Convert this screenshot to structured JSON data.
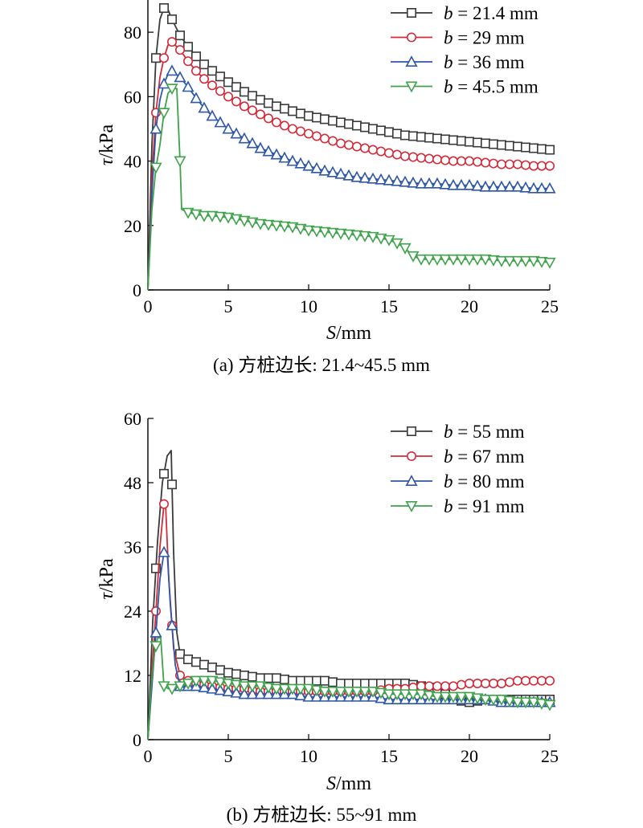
{
  "colors": {
    "black": "#3a3a3a",
    "red": "#d22b3a",
    "blue": "#2e57a6",
    "green": "#3ea24a"
  },
  "chart_data": [
    {
      "type": "line",
      "panel": "a",
      "caption": "(a) 方桩边长: 21.4~45.5 mm",
      "xlabel": {
        "var": "S",
        "unit": "/mm"
      },
      "ylabel": {
        "var": "τ",
        "unit": "/kPa"
      },
      "xlim": [
        0,
        25
      ],
      "ylim": [
        0,
        90
      ],
      "xticks": [
        "0",
        "5",
        "10",
        "15",
        "20",
        "25"
      ],
      "yticks": [
        "0",
        "20",
        "40",
        "60",
        "80"
      ],
      "ytick_values": [
        0,
        20,
        40,
        60,
        80
      ],
      "legend_placement": "top-right",
      "series": [
        {
          "name": "b = 21.4 mm",
          "legend": {
            "var": "b",
            "rest": " = 21.4 mm"
          },
          "color": "#3a3a3a",
          "marker": "square",
          "x": [
            0,
            0.25,
            0.5,
            0.75,
            1,
            1.25,
            1.5,
            2,
            2.5,
            3,
            3.5,
            4,
            5,
            6,
            7,
            8,
            9,
            10,
            11,
            12,
            13,
            14,
            15,
            16,
            17,
            18,
            19,
            20,
            21,
            22,
            23,
            24,
            25
          ],
          "y": [
            0,
            45,
            72,
            84,
            87.5,
            87,
            84,
            79,
            75.5,
            72.5,
            70,
            68,
            64.5,
            61.5,
            59,
            57,
            55.5,
            54,
            53,
            52,
            51,
            50,
            49,
            48,
            47.5,
            47,
            46.5,
            46,
            45.5,
            45,
            44.5,
            44,
            43.5
          ]
        },
        {
          "name": "b = 29 mm",
          "legend": {
            "var": "b",
            "rest": " = 29 mm"
          },
          "color": "#d22b3a",
          "marker": "circle",
          "x": [
            0,
            0.25,
            0.5,
            0.75,
            1,
            1.25,
            1.5,
            2,
            2.5,
            3,
            3.5,
            4,
            5,
            6,
            7,
            8,
            9,
            10,
            11,
            12,
            13,
            14,
            15,
            16,
            17,
            18,
            19,
            20,
            21,
            22,
            23,
            24,
            25
          ],
          "y": [
            0,
            35,
            55,
            66,
            72,
            76,
            77,
            74.5,
            71,
            68,
            65.5,
            63.5,
            60,
            57,
            54.5,
            52,
            50,
            48.5,
            47,
            45.5,
            44.5,
            43.5,
            42.5,
            41.5,
            41,
            40.5,
            40,
            40,
            39.5,
            39,
            39,
            38.5,
            38.5
          ]
        },
        {
          "name": "b = 36 mm",
          "legend": {
            "var": "b",
            "rest": " = 36 mm"
          },
          "color": "#2e57a6",
          "marker": "triangle-up",
          "x": [
            0,
            0.25,
            0.5,
            0.75,
            1,
            1.25,
            1.5,
            2,
            2.5,
            3,
            3.5,
            4,
            5,
            6,
            7,
            8,
            9,
            10,
            11,
            12,
            13,
            14,
            15,
            16,
            17,
            18,
            19,
            20,
            21,
            22,
            23,
            24,
            25
          ],
          "y": [
            0,
            30,
            50,
            59,
            64,
            67,
            68,
            66,
            63,
            59.5,
            56.5,
            54,
            50,
            47,
            44,
            42,
            40,
            38.5,
            37,
            36,
            35,
            34.5,
            34,
            33.5,
            33,
            33,
            32.5,
            32.5,
            32,
            32,
            32,
            31.5,
            31.5
          ]
        },
        {
          "name": "b = 45.5 mm",
          "legend": {
            "var": "b",
            "rest": " = 45.5 mm"
          },
          "color": "#3ea24a",
          "marker": "triangle-down",
          "x": [
            0,
            0.25,
            0.5,
            0.75,
            1,
            1.25,
            1.5,
            1.8,
            2.0,
            2.1,
            2.5,
            3,
            3.5,
            4,
            5,
            6,
            7,
            8,
            9,
            10,
            11,
            12,
            13,
            14,
            15,
            15.5,
            16,
            16.5,
            17,
            18,
            19,
            20,
            21,
            22,
            23,
            24,
            25
          ],
          "y": [
            0,
            25,
            38,
            45,
            55,
            61,
            62.5,
            62.5,
            40,
            25,
            24,
            23.5,
            23,
            23,
            22.5,
            21.5,
            20.5,
            20,
            19.5,
            18.5,
            18,
            17.5,
            17,
            16.5,
            15.5,
            14.5,
            13,
            10.5,
            9.5,
            9.5,
            9.5,
            9.5,
            9.5,
            9,
            9,
            9,
            8.5
          ]
        }
      ]
    },
    {
      "type": "line",
      "panel": "b",
      "caption": "(b) 方桩边长: 55~91 mm",
      "xlabel": {
        "var": "S",
        "unit": "/mm"
      },
      "ylabel": {
        "var": "τ",
        "unit": "/kPa"
      },
      "xlim": [
        0,
        25
      ],
      "ylim": [
        0,
        60
      ],
      "xticks": [
        "0",
        "5",
        "10",
        "15",
        "20",
        "25"
      ],
      "yticks": [
        "0",
        "12",
        "24",
        "36",
        "48",
        "60"
      ],
      "ytick_values": [
        0,
        12,
        24,
        36,
        48,
        60
      ],
      "legend_placement": "top-right",
      "series": [
        {
          "name": "b = 55 mm",
          "legend": {
            "var": "b",
            "rest": " = 55 mm"
          },
          "color": "#3a3a3a",
          "marker": "square",
          "x": [
            0,
            0.3,
            0.6,
            0.9,
            1.2,
            1.45,
            1.6,
            1.8,
            2.0,
            2.5,
            3,
            4,
            5,
            6,
            7,
            8,
            9,
            10,
            11,
            12,
            13,
            14,
            15,
            16,
            17,
            18,
            19,
            20,
            21,
            22,
            23,
            24,
            25
          ],
          "y": [
            0,
            22,
            37,
            48,
            53,
            54,
            35,
            20,
            16,
            15,
            14.5,
            13.5,
            12.5,
            12,
            11.5,
            11.5,
            11,
            11,
            11,
            10.5,
            10.5,
            10.5,
            10.5,
            10.5,
            10,
            9.5,
            7.5,
            7,
            7.5,
            7.5,
            7.5,
            7.5,
            7.5
          ]
        },
        {
          "name": "b = 67 mm",
          "legend": {
            "var": "b",
            "rest": " = 67 mm"
          },
          "color": "#d22b3a",
          "marker": "circle",
          "x": [
            0,
            0.3,
            0.5,
            0.75,
            1.0,
            1.1,
            1.3,
            1.6,
            2.0,
            2.5,
            3,
            4,
            5,
            6,
            7,
            8,
            9,
            10,
            11,
            12,
            13,
            14,
            15,
            16,
            17,
            18,
            19,
            20,
            21,
            22,
            23,
            24,
            25
          ],
          "y": [
            0,
            15,
            24,
            36,
            44,
            44,
            30,
            17,
            12,
            11,
            10.5,
            10,
            9.5,
            9.5,
            9,
            9,
            9,
            9,
            9,
            9,
            9,
            9,
            9.5,
            9.5,
            10,
            10,
            10,
            10.5,
            10.5,
            10.5,
            11,
            11,
            11
          ]
        },
        {
          "name": "b = 80 mm",
          "legend": {
            "var": "b",
            "rest": " = 80 mm"
          },
          "color": "#2e57a6",
          "marker": "triangle-up",
          "x": [
            0,
            0.3,
            0.5,
            0.75,
            1.0,
            1.2,
            1.4,
            1.7,
            2.0,
            2.5,
            3,
            4,
            5,
            6,
            7,
            8,
            9,
            10,
            11,
            12,
            13,
            14,
            15,
            16,
            17,
            18,
            19,
            20,
            21,
            22,
            23,
            24,
            25
          ],
          "y": [
            0,
            12,
            20,
            30,
            35,
            35,
            25,
            14,
            10,
            10,
            10,
            9.5,
            9,
            8.5,
            8.5,
            8.5,
            8.5,
            8,
            8,
            8,
            8,
            8,
            7.5,
            7.5,
            7.5,
            7.5,
            7.5,
            7.5,
            7.5,
            7,
            7,
            7,
            7
          ]
        },
        {
          "name": "b = 91 mm",
          "legend": {
            "var": "b",
            "rest": " = 91 mm"
          },
          "color": "#3ea24a",
          "marker": "triangle-down",
          "x": [
            0,
            0.2,
            0.4,
            0.6,
            0.8,
            1.0,
            1.3,
            1.6,
            2.0,
            2.5,
            3,
            4,
            5,
            6,
            7,
            8,
            9,
            10,
            11,
            12,
            13,
            14,
            15,
            16,
            17,
            18,
            19,
            20,
            21,
            22,
            23,
            24,
            25
          ],
          "y": [
            0,
            10,
            16,
            19,
            19,
            10,
            9.5,
            9.5,
            10,
            10.5,
            11,
            11,
            10.5,
            10,
            10,
            9.5,
            9.5,
            9.5,
            9,
            9,
            9,
            9,
            8.5,
            8.5,
            8.5,
            8,
            8,
            8,
            7.5,
            7.5,
            7,
            7,
            6.5
          ]
        }
      ]
    }
  ]
}
